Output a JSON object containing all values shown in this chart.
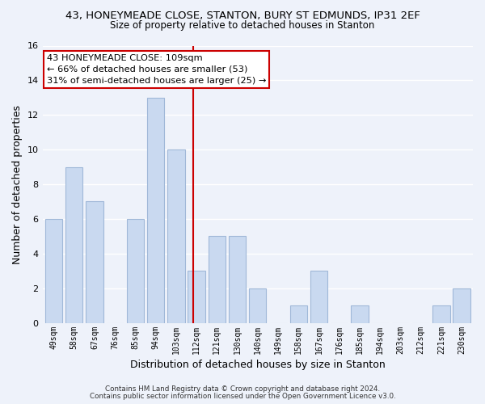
{
  "title1": "43, HONEYMEADE CLOSE, STANTON, BURY ST EDMUNDS, IP31 2EF",
  "title2": "Size of property relative to detached houses in Stanton",
  "xlabel": "Distribution of detached houses by size in Stanton",
  "ylabel": "Number of detached properties",
  "categories": [
    "49sqm",
    "58sqm",
    "67sqm",
    "76sqm",
    "85sqm",
    "94sqm",
    "103sqm",
    "112sqm",
    "121sqm",
    "130sqm",
    "140sqm",
    "149sqm",
    "158sqm",
    "167sqm",
    "176sqm",
    "185sqm",
    "194sqm",
    "203sqm",
    "212sqm",
    "221sqm",
    "230sqm"
  ],
  "values": [
    6,
    9,
    7,
    0,
    6,
    13,
    10,
    3,
    5,
    5,
    2,
    0,
    1,
    3,
    0,
    1,
    0,
    0,
    0,
    1,
    2
  ],
  "bar_color": "#c9d9f0",
  "bar_edge_color": "#a0b8d8",
  "vline_color": "#cc0000",
  "vline_pos": 6.833,
  "ylim": [
    0,
    16
  ],
  "yticks": [
    0,
    2,
    4,
    6,
    8,
    10,
    12,
    14,
    16
  ],
  "annotation_title": "43 HONEYMEADE CLOSE: 109sqm",
  "annotation_line1": "← 66% of detached houses are smaller (53)",
  "annotation_line2": "31% of semi-detached houses are larger (25) →",
  "annotation_box_color": "#ffffff",
  "annotation_box_edge": "#cc0000",
  "footer1": "Contains HM Land Registry data © Crown copyright and database right 2024.",
  "footer2": "Contains public sector information licensed under the Open Government Licence v3.0.",
  "background_color": "#eef2fa",
  "grid_color": "#ffffff",
  "fig_width": 6.0,
  "fig_height": 5.0
}
